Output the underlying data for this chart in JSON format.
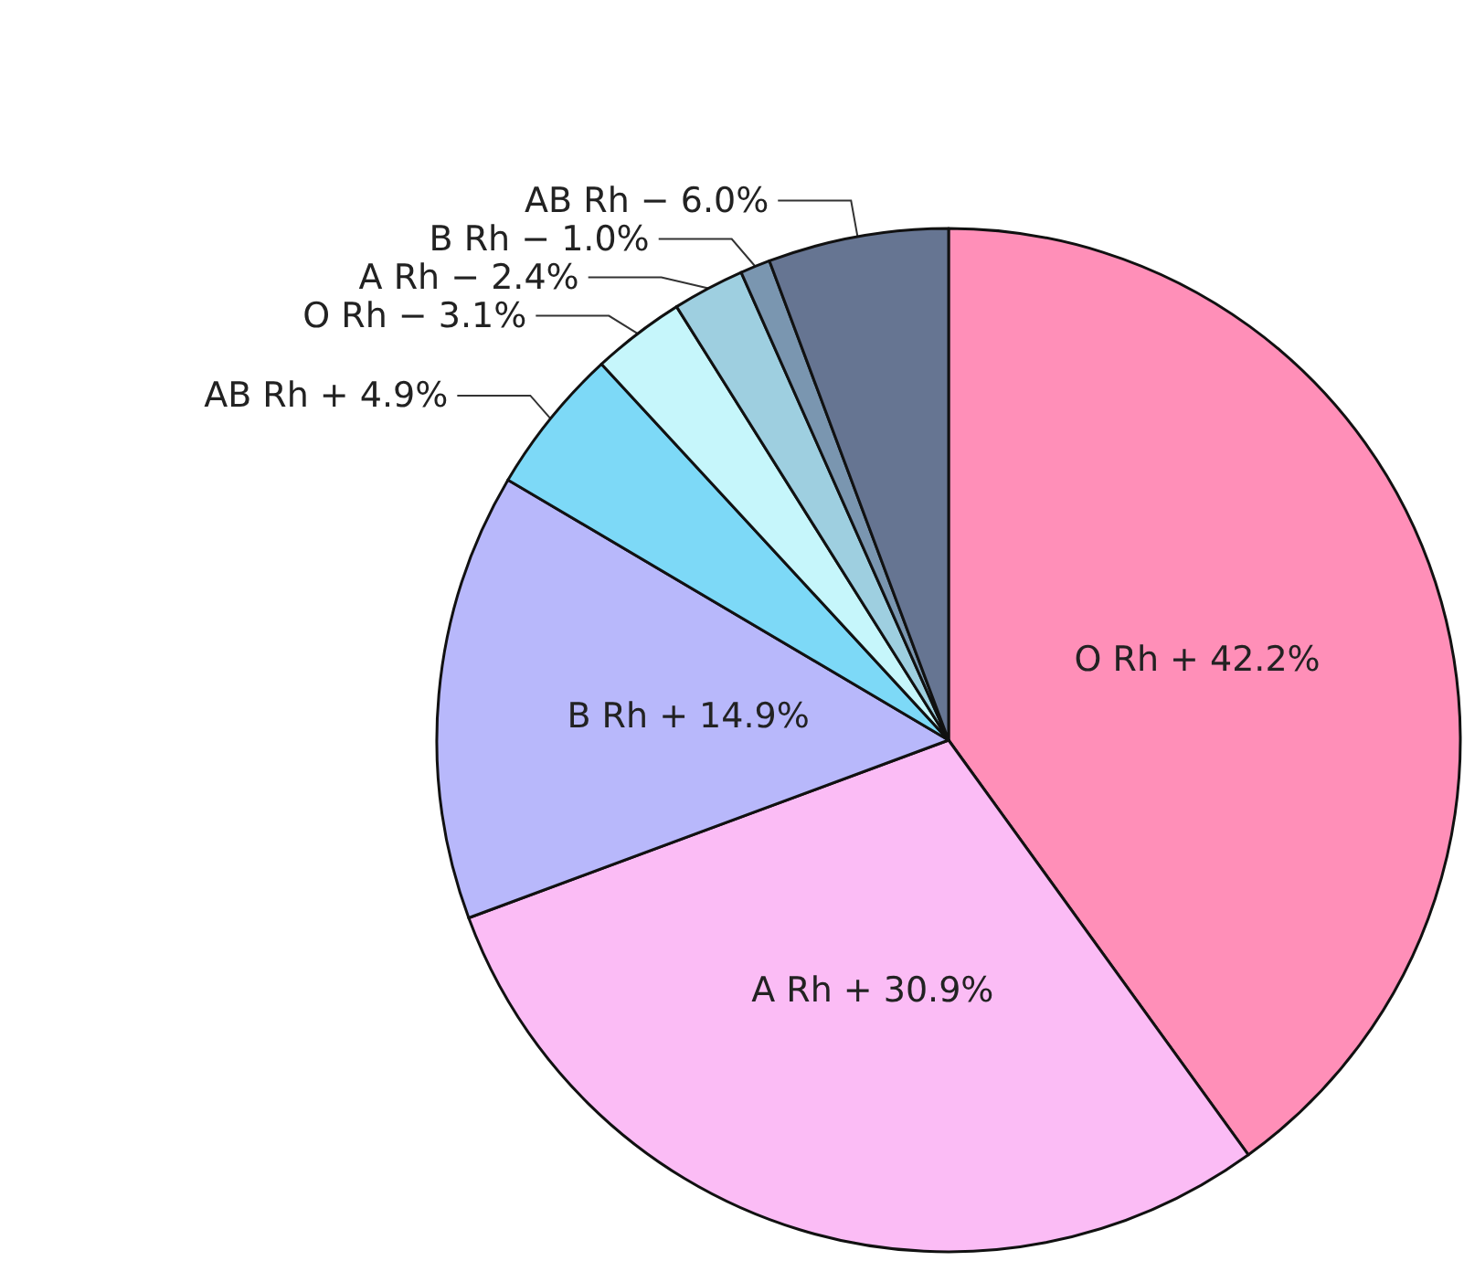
{
  "chart_data": {
    "type": "pie",
    "categories": [
      "O Rh +",
      "A Rh +",
      "B Rh +",
      "AB Rh +",
      "O Rh −",
      "A Rh −",
      "B Rh −",
      "AB Rh −"
    ],
    "values": [
      42.2,
      30.9,
      14.9,
      4.9,
      3.1,
      2.4,
      1.0,
      6.0
    ],
    "colors": [
      "#ff8fb8",
      "#fbbcf5",
      "#b8b8fb",
      "#7dd9f7",
      "#c6f6fb",
      "#9ecfe0",
      "#7a96b0",
      "#667592"
    ],
    "value_labels": [
      "42.2%",
      "30.9%",
      "14.9%",
      "4.9%",
      "3.1%",
      "2.4%",
      "1.0%",
      "6.0%"
    ],
    "legend": false
  }
}
